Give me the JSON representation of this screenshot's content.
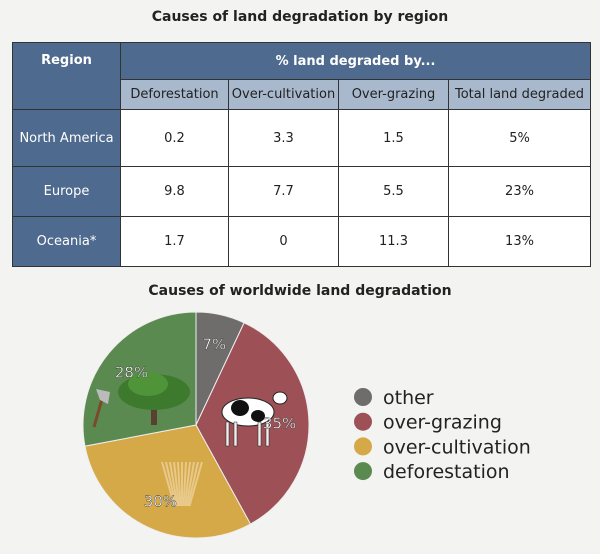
{
  "chart_data": [
    {
      "type": "table",
      "title": "Causes of land degradation by region",
      "header_group": "% land degraded by...",
      "row_header": "Region",
      "columns": [
        "Deforestation",
        "Over-cultivation",
        "Over-grazing",
        "Total land degraded"
      ],
      "rows": [
        {
          "region": "North America",
          "values": [
            "0.2",
            "3.3",
            "1.5",
            "5%"
          ]
        },
        {
          "region": "Europe",
          "values": [
            "9.8",
            "7.7",
            "5.5",
            "23%"
          ]
        },
        {
          "region": "Oceania*",
          "values": [
            "1.7",
            "0",
            "11.3",
            "13%"
          ]
        }
      ]
    },
    {
      "type": "pie",
      "title": "Causes of worldwide land degradation",
      "legend_position": "right",
      "slices": [
        {
          "name": "other",
          "value": 7,
          "label": "7%",
          "color": "#6e6d6c",
          "icon": "none"
        },
        {
          "name": "over-grazing",
          "value": 35,
          "label": "35%",
          "color": "#9d5156",
          "icon": "cow-icon"
        },
        {
          "name": "over-cultivation",
          "value": 30,
          "label": "30%",
          "color": "#d5a848",
          "icon": "wheat-icon"
        },
        {
          "name": "deforestation",
          "value": 28,
          "label": "28%",
          "color": "#5b8a50",
          "icon": "tree-axe-icon"
        }
      ]
    }
  ]
}
